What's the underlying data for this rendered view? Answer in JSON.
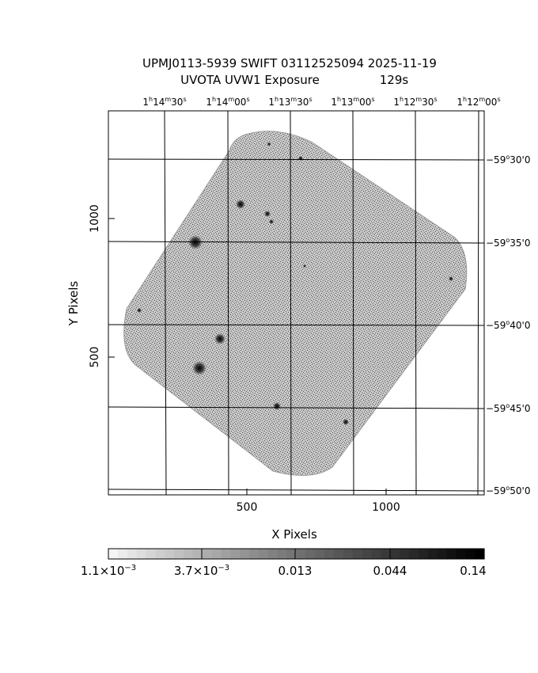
{
  "title": {
    "line1": "UPMJ0113-5939 SWIFT 03112525094 2025-11-19",
    "line2_prefix": "UVOTA UVW1 Exposure",
    "line2_value": "129s"
  },
  "axes": {
    "xlabel": "X Pixels",
    "ylabel": "Y Pixels",
    "x_ticks": [
      "500",
      "1000"
    ],
    "y_ticks": [
      "500",
      "1000"
    ],
    "ra_ticks": [
      {
        "h": "1",
        "m": "14",
        "s": "30"
      },
      {
        "h": "1",
        "m": "14",
        "s": "00"
      },
      {
        "h": "1",
        "m": "13",
        "s": "30"
      },
      {
        "h": "1",
        "m": "13",
        "s": "00"
      },
      {
        "h": "1",
        "m": "12",
        "s": "30"
      },
      {
        "h": "1",
        "m": "12",
        "s": "00"
      }
    ],
    "dec_ticks": [
      {
        "d": "−59",
        "m": "30",
        "s": "0"
      },
      {
        "d": "−59",
        "m": "35",
        "s": "0"
      },
      {
        "d": "−59",
        "m": "40",
        "s": "0"
      },
      {
        "d": "−59",
        "m": "45",
        "s": "0"
      },
      {
        "d": "−59",
        "m": "50",
        "s": "0"
      }
    ]
  },
  "colorbar": {
    "labels": [
      {
        "mant": "1.1×10",
        "exp": "−3"
      },
      {
        "mant": "3.7×10",
        "exp": "−3"
      },
      {
        "mant": "0.013",
        "exp": ""
      },
      {
        "mant": "0.044",
        "exp": ""
      },
      {
        "mant": "0.14",
        "exp": ""
      }
    ]
  },
  "colors": {
    "image_background": "#ffffff",
    "noise": "#7a7a7a",
    "grid": "#000000"
  }
}
